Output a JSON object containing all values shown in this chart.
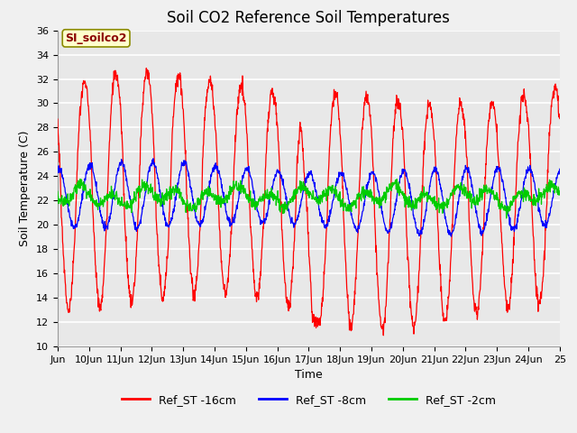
{
  "title": "Soil CO2 Reference Soil Temperatures",
  "xlabel": "Time",
  "ylabel": "Soil Temperature (C)",
  "ylim": [
    10,
    36
  ],
  "yticks": [
    10,
    12,
    14,
    16,
    18,
    20,
    22,
    24,
    26,
    28,
    30,
    32,
    34,
    36
  ],
  "x_tick_labels": [
    "Jun",
    "10Jun",
    "11Jun",
    "12Jun",
    "13Jun",
    "14Jun",
    "15Jun",
    "16Jun",
    "17Jun",
    "18Jun",
    "19Jun",
    "20Jun",
    "21Jun",
    "22Jun",
    "23Jun",
    "24Jun",
    "25"
  ],
  "annotation_text": "SI_soilco2",
  "annotation_color": "#8B0000",
  "annotation_bg": "#FFFFCC",
  "annotation_border": "#8B8B00",
  "series": [
    {
      "label": "Ref_ST -16cm",
      "color": "#FF0000"
    },
    {
      "label": "Ref_ST -8cm",
      "color": "#0000FF"
    },
    {
      "label": "Ref_ST -2cm",
      "color": "#00CC00"
    }
  ],
  "background_color": "#F0F0F0",
  "plot_bg_color": "#E8E8E8",
  "grid_color": "#FFFFFF",
  "title_fontsize": 12,
  "axis_label_fontsize": 9,
  "tick_fontsize": 8,
  "legend_fontsize": 9
}
